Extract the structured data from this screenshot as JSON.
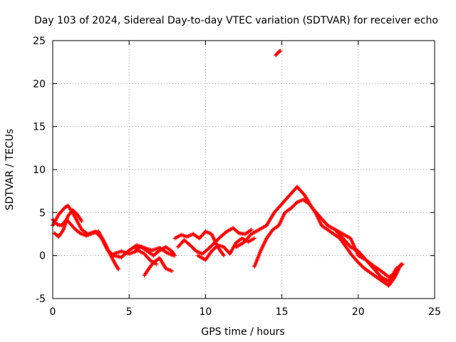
{
  "chart_data": {
    "type": "scatter",
    "title": "Day 103 of 2024, Sidereal Day-to-day VTEC variation (SDTVAR) for receiver echo",
    "xlabel": "GPS time / hours",
    "ylabel": "SDTVAR / TECUs",
    "xlim": [
      0,
      25
    ],
    "ylim": [
      -5,
      25
    ],
    "xticks": [
      0,
      5,
      10,
      15,
      20,
      25
    ],
    "yticks": [
      -5,
      0,
      5,
      10,
      15,
      20,
      25
    ],
    "grid": true,
    "marker": "+",
    "colors": {
      "series": "#ff0000",
      "grid": "#a0a0a0",
      "axis": "#000000"
    },
    "series": [
      {
        "name": "SDTVAR",
        "tracks": [
          {
            "x": [
              0.0,
              0.4,
              0.8,
              1.0,
              1.3,
              1.6,
              1.9,
              2.3,
              2.8,
              3.2,
              3.6,
              4.0,
              4.5,
              5.0,
              5.5,
              6.0,
              6.5,
              7.0,
              7.5,
              7.9
            ],
            "y": [
              3.5,
              4.8,
              5.6,
              5.8,
              5.0,
              4.0,
              3.0,
              2.5,
              2.8,
              2.0,
              0.6,
              0.0,
              -0.2,
              0.6,
              1.2,
              0.9,
              0.6,
              0.9,
              0.3,
              0.0
            ]
          },
          {
            "x": [
              0.0,
              0.3,
              0.6,
              0.9,
              1.2,
              1.5,
              1.8,
              2.2,
              2.6,
              3.0,
              3.4,
              3.8,
              4.1,
              4.3
            ],
            "y": [
              4.2,
              3.6,
              3.5,
              4.2,
              3.6,
              3.0,
              2.6,
              2.3,
              2.6,
              2.8,
              1.5,
              0.0,
              -1.0,
              -1.6
            ]
          },
          {
            "x": [
              0.1,
              0.4,
              0.7,
              1.0,
              1.3,
              1.6,
              1.9
            ],
            "y": [
              2.6,
              2.2,
              3.0,
              4.6,
              5.3,
              4.8,
              4.0
            ]
          },
          {
            "x": [
              4.0,
              4.5,
              5.0,
              5.6,
              6.0,
              6.4,
              6.8
            ],
            "y": [
              0.2,
              0.5,
              0.2,
              0.6,
              0.2,
              -0.6,
              -1.0
            ]
          },
          {
            "x": [
              6.0,
              6.3,
              6.6,
              7.0,
              7.4,
              7.8
            ],
            "y": [
              -2.3,
              -1.5,
              -0.8,
              -0.3,
              -1.5,
              -1.8
            ]
          },
          {
            "x": [
              5.4,
              5.8,
              6.2,
              6.6,
              7.0,
              7.4,
              7.8,
              8.0
            ],
            "y": [
              0.8,
              1.0,
              0.5,
              0.0,
              0.6,
              1.0,
              0.5,
              0.0
            ]
          },
          {
            "x": [
              8.0,
              8.4,
              8.8,
              9.2,
              9.6,
              10.0,
              10.4,
              10.8,
              11.2
            ],
            "y": [
              2.0,
              2.4,
              2.2,
              2.5,
              2.0,
              2.8,
              2.5,
              1.0,
              0.0
            ]
          },
          {
            "x": [
              8.2,
              8.6,
              9.0,
              9.4,
              9.8,
              10.2,
              10.6,
              11.0,
              11.4,
              11.8,
              12.2,
              12.6,
              13.0
            ],
            "y": [
              1.0,
              1.8,
              1.2,
              0.5,
              0.2,
              0.8,
              1.5,
              2.2,
              2.8,
              3.2,
              2.6,
              2.5,
              3.0
            ]
          },
          {
            "x": [
              9.5,
              10.0,
              10.4,
              10.8,
              11.2,
              11.6,
              12.0,
              12.4,
              12.8,
              13.2
            ],
            "y": [
              0.0,
              -0.5,
              0.5,
              1.2,
              1.0,
              0.2,
              1.5,
              2.0,
              1.6,
              2.0
            ]
          },
          {
            "x": [
              12.0,
              12.5,
              13.0,
              13.5,
              14.0,
              14.5,
              15.0,
              15.5,
              16.0,
              16.5,
              17.0,
              17.5,
              18.0,
              18.5,
              19.0,
              19.5,
              20.0,
              20.5,
              21.0,
              21.5,
              22.0,
              22.5,
              22.9
            ],
            "y": [
              1.0,
              1.5,
              2.5,
              3.0,
              3.5,
              5.0,
              6.0,
              7.0,
              8.0,
              7.0,
              5.5,
              4.5,
              3.5,
              3.0,
              2.5,
              2.0,
              0.0,
              -0.5,
              -1.5,
              -2.5,
              -3.0,
              -1.5,
              -1.0
            ]
          },
          {
            "x": [
              13.2,
              13.6,
              14.0,
              14.4,
              14.8,
              15.2,
              15.6,
              16.0,
              16.4,
              16.8,
              17.2,
              17.6,
              18.0,
              18.4,
              18.8,
              19.2,
              19.6,
              20.0,
              20.4,
              20.8,
              21.2,
              21.6,
              22.0,
              22.4,
              22.8
            ],
            "y": [
              -1.3,
              0.5,
              2.0,
              3.0,
              3.5,
              5.0,
              5.5,
              6.2,
              6.5,
              6.0,
              5.0,
              3.5,
              3.0,
              2.5,
              2.0,
              1.0,
              0.0,
              -0.8,
              -1.5,
              -2.0,
              -2.5,
              -3.0,
              -3.5,
              -2.5,
              -1.0
            ]
          },
          {
            "x": [
              18.5,
              19.0,
              19.5,
              20.0,
              20.5,
              21.0,
              21.5,
              22.0,
              22.5
            ],
            "y": [
              3.0,
              2.0,
              1.0,
              0.5,
              -0.5,
              -1.2,
              -1.8,
              -2.5,
              -2.0
            ]
          },
          {
            "x": [
              14.6,
              14.7,
              14.8,
              14.9
            ],
            "y": [
              23.3,
              23.5,
              23.7,
              23.8
            ]
          }
        ]
      }
    ]
  }
}
